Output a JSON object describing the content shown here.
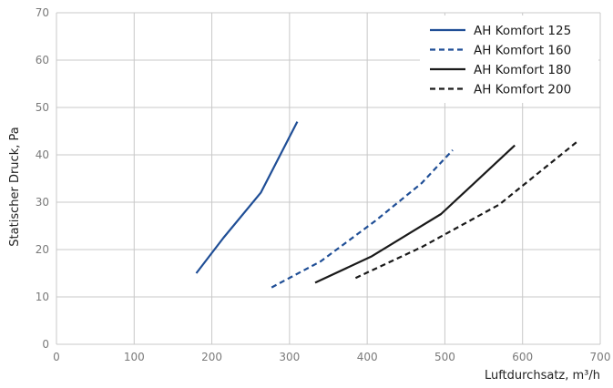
{
  "chart_data": {
    "type": "line",
    "title": "",
    "xlabel": "Luftdurchsatz, m³/h",
    "ylabel": "Statischer Druck, Pa",
    "xlim": [
      0,
      700
    ],
    "ylim": [
      0,
      70
    ],
    "xticks": [
      0,
      100,
      200,
      300,
      400,
      500,
      600,
      700
    ],
    "yticks": [
      0,
      10,
      20,
      30,
      40,
      50,
      60,
      70
    ],
    "grid": true,
    "legend_position": "top-right",
    "series": [
      {
        "name": "AH Komfort 125",
        "color": "#1f4e96",
        "dash": "solid",
        "points": [
          [
            180,
            15
          ],
          [
            215,
            22.5
          ],
          [
            263,
            32
          ],
          [
            310,
            47
          ]
        ]
      },
      {
        "name": "AH Komfort 160",
        "color": "#1f4e96",
        "dash": "dashed",
        "points": [
          [
            277,
            12
          ],
          [
            340,
            17.5
          ],
          [
            410,
            26
          ],
          [
            470,
            34
          ],
          [
            510,
            41
          ]
        ]
      },
      {
        "name": "AH Komfort 180",
        "color": "#1a1a1a",
        "dash": "solid",
        "points": [
          [
            333,
            13
          ],
          [
            405,
            18.5
          ],
          [
            495,
            27.5
          ],
          [
            590,
            42
          ]
        ]
      },
      {
        "name": "AH Komfort 200",
        "color": "#1a1a1a",
        "dash": "dashed",
        "points": [
          [
            385,
            14
          ],
          [
            470,
            20.5
          ],
          [
            570,
            29.5
          ],
          [
            672,
            43
          ]
        ]
      }
    ]
  }
}
